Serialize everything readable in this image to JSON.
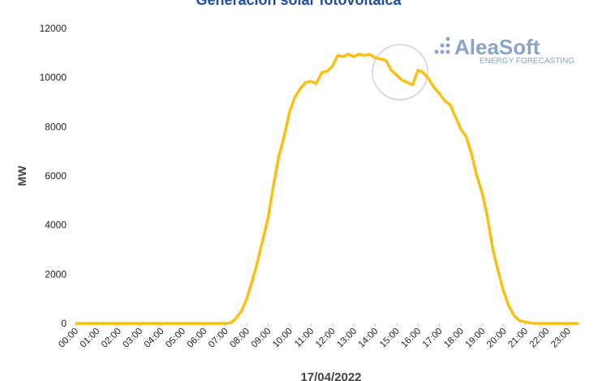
{
  "chart_data": {
    "type": "line",
    "title": "Generación solar fotovoltaica",
    "xlabel": "17/04/2022",
    "ylabel": "MW",
    "x": [
      0,
      7,
      7.25,
      7.5,
      7.75,
      8,
      8.25,
      8.5,
      8.75,
      9,
      9.25,
      9.5,
      9.75,
      10,
      10.25,
      10.5,
      10.75,
      11,
      11.25,
      11.5,
      11.75,
      12,
      12.25,
      12.5,
      12.75,
      13,
      13.25,
      13.5,
      13.75,
      14,
      14.25,
      14.5,
      14.75,
      15,
      15.25,
      15.5,
      15.75,
      16,
      16.25,
      16.5,
      16.75,
      17,
      17.25,
      17.5,
      17.75,
      18,
      18.25,
      18.5,
      18.75,
      19,
      19.25,
      19.5,
      19.75,
      20,
      20.25,
      20.5,
      20.75,
      21,
      21.25,
      21.5,
      23.5
    ],
    "series": [
      {
        "name": "MW",
        "color": "#fbbf14",
        "values": [
          0,
          0,
          20,
          200,
          500,
          1000,
          1700,
          2500,
          3400,
          4300,
          5600,
          6800,
          7600,
          8600,
          9200,
          9550,
          9800,
          9850,
          9750,
          10200,
          10250,
          10450,
          10900,
          10850,
          10950,
          10850,
          10950,
          10900,
          10950,
          10800,
          10750,
          10700,
          10300,
          10100,
          9900,
          9800,
          9700,
          10300,
          10200,
          9950,
          9600,
          9350,
          9050,
          8900,
          8400,
          7900,
          7600,
          6900,
          6000,
          5300,
          4300,
          3000,
          2100,
          1300,
          700,
          300,
          120,
          60,
          20,
          0,
          0
        ]
      }
    ],
    "xlim": [
      0,
      23.5
    ],
    "xticks": [
      {
        "value": 0,
        "label": "00:00"
      },
      {
        "value": 1,
        "label": "01:00"
      },
      {
        "value": 2,
        "label": "02:00"
      },
      {
        "value": 3,
        "label": "03:00"
      },
      {
        "value": 4,
        "label": "04:00"
      },
      {
        "value": 5,
        "label": "05:00"
      },
      {
        "value": 6,
        "label": "06:00"
      },
      {
        "value": 7,
        "label": "07:00"
      },
      {
        "value": 8,
        "label": "08:00"
      },
      {
        "value": 9,
        "label": "09:00"
      },
      {
        "value": 10,
        "label": "10:00"
      },
      {
        "value": 11,
        "label": "11:00"
      },
      {
        "value": 12,
        "label": "12:00"
      },
      {
        "value": 13,
        "label": "13:00"
      },
      {
        "value": 14,
        "label": "14:00"
      },
      {
        "value": 15,
        "label": "15:00"
      },
      {
        "value": 16,
        "label": "16:00"
      },
      {
        "value": 17,
        "label": "17:00"
      },
      {
        "value": 18,
        "label": "18:00"
      },
      {
        "value": 19,
        "label": "19:00"
      },
      {
        "value": 20,
        "label": "20:00"
      },
      {
        "value": 21,
        "label": "21:00"
      },
      {
        "value": 22,
        "label": "22:00"
      },
      {
        "value": 23,
        "label": "23:00"
      }
    ],
    "ylim": [
      0,
      12000
    ],
    "yticks": [
      0,
      2000,
      4000,
      6000,
      8000,
      10000,
      12000
    ],
    "grid": false
  },
  "logo": {
    "name": "AleaSoft",
    "tagline": "ENERGY FORECASTING"
  }
}
